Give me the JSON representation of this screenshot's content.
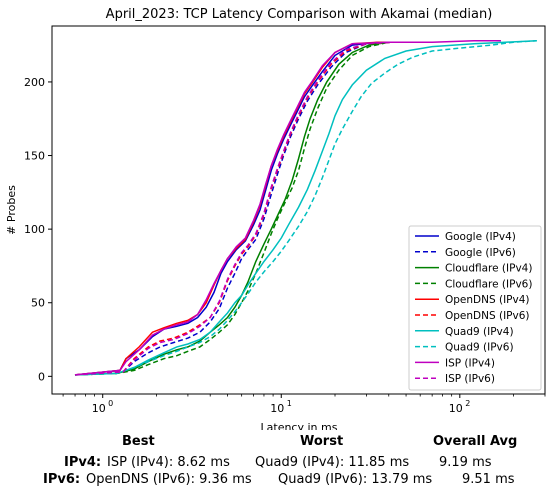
{
  "chart_data": {
    "type": "line",
    "title": "April_2023: TCP Latency Comparison with Akamai (median)",
    "xlabel": "Latency in ms",
    "ylabel": "# Probes",
    "xscale": "log",
    "xlim": [
      0.52,
      300
    ],
    "ylim": [
      -12,
      238
    ],
    "xticks": [
      {
        "value": 1,
        "base": "10",
        "exp": "0"
      },
      {
        "value": 10,
        "base": "10",
        "exp": "1"
      },
      {
        "value": 100,
        "base": "10",
        "exp": "2"
      }
    ],
    "yticks": [
      0,
      50,
      100,
      150,
      200
    ],
    "grid": false,
    "legend_position": "lower-right",
    "series": [
      {
        "name": "Google (IPv4)",
        "color": "#0000cc",
        "dash": "solid",
        "points": [
          [
            0.7,
            1
          ],
          [
            1.25,
            4
          ],
          [
            1.35,
            12
          ],
          [
            1.6,
            18
          ],
          [
            1.9,
            27
          ],
          [
            2.2,
            32
          ],
          [
            2.6,
            34
          ],
          [
            3.0,
            36
          ],
          [
            3.4,
            40
          ],
          [
            3.8,
            47
          ],
          [
            4.2,
            57
          ],
          [
            4.6,
            70
          ],
          [
            5.0,
            78
          ],
          [
            5.6,
            86
          ],
          [
            6.3,
            92
          ],
          [
            7.0,
            103
          ],
          [
            7.6,
            113
          ],
          [
            8.2,
            127
          ],
          [
            8.8,
            140
          ],
          [
            9.5,
            151
          ],
          [
            10.3,
            161
          ],
          [
            11.2,
            170
          ],
          [
            12.3,
            180
          ],
          [
            13.5,
            190
          ],
          [
            15,
            198
          ],
          [
            17,
            207
          ],
          [
            20,
            218
          ],
          [
            25,
            225
          ],
          [
            35,
            227
          ],
          [
            48,
            227
          ]
        ]
      },
      {
        "name": "Google (IPv6)",
        "color": "#0000cc",
        "dash": "dashed",
        "points": [
          [
            0.7,
            1
          ],
          [
            1.3,
            3
          ],
          [
            1.5,
            10
          ],
          [
            1.8,
            16
          ],
          [
            2.1,
            20
          ],
          [
            2.5,
            23
          ],
          [
            3.0,
            26
          ],
          [
            3.5,
            30
          ],
          [
            4.0,
            37
          ],
          [
            4.5,
            46
          ],
          [
            5.0,
            60
          ],
          [
            5.5,
            70
          ],
          [
            6.0,
            80
          ],
          [
            6.5,
            86
          ],
          [
            7.2,
            93
          ],
          [
            8.0,
            107
          ],
          [
            8.7,
            122
          ],
          [
            9.5,
            137
          ],
          [
            10.3,
            150
          ],
          [
            11.3,
            163
          ],
          [
            12.5,
            175
          ],
          [
            14,
            187
          ],
          [
            16,
            198
          ],
          [
            19,
            210
          ],
          [
            23,
            220
          ],
          [
            30,
            226
          ],
          [
            42,
            227
          ]
        ]
      },
      {
        "name": "Cloudflare (IPv4)",
        "color": "#008000",
        "dash": "solid",
        "points": [
          [
            0.7,
            1
          ],
          [
            1.2,
            2
          ],
          [
            1.5,
            5
          ],
          [
            1.8,
            10
          ],
          [
            2.2,
            15
          ],
          [
            2.6,
            18
          ],
          [
            3.0,
            20
          ],
          [
            3.5,
            24
          ],
          [
            4.0,
            30
          ],
          [
            4.5,
            35
          ],
          [
            5.0,
            40
          ],
          [
            5.5,
            47
          ],
          [
            6.0,
            55
          ],
          [
            6.5,
            64
          ],
          [
            7.2,
            78
          ],
          [
            8.0,
            90
          ],
          [
            8.8,
            100
          ],
          [
            9.6,
            110
          ],
          [
            10.5,
            120
          ],
          [
            11.5,
            133
          ],
          [
            12.5,
            148
          ],
          [
            13.5,
            163
          ],
          [
            14.5,
            175
          ],
          [
            16,
            188
          ],
          [
            18,
            200
          ],
          [
            21,
            212
          ],
          [
            25,
            220
          ],
          [
            31,
            225
          ],
          [
            40,
            227
          ]
        ]
      },
      {
        "name": "Cloudflare (IPv6)",
        "color": "#008000",
        "dash": "dashed",
        "points": [
          [
            0.7,
            1
          ],
          [
            1.2,
            2
          ],
          [
            1.5,
            4
          ],
          [
            1.8,
            8
          ],
          [
            2.2,
            12
          ],
          [
            2.6,
            14
          ],
          [
            3.0,
            17
          ],
          [
            3.5,
            20
          ],
          [
            4.0,
            25
          ],
          [
            4.5,
            30
          ],
          [
            5.0,
            35
          ],
          [
            5.5,
            42
          ],
          [
            6.0,
            50
          ],
          [
            6.5,
            58
          ],
          [
            7.2,
            70
          ],
          [
            8.0,
            84
          ],
          [
            8.8,
            97
          ],
          [
            9.6,
            108
          ],
          [
            10.5,
            118
          ],
          [
            11.5,
            128
          ],
          [
            12.5,
            140
          ],
          [
            13.5,
            155
          ],
          [
            14.5,
            168
          ],
          [
            16,
            182
          ],
          [
            18,
            196
          ],
          [
            21,
            208
          ],
          [
            25,
            218
          ],
          [
            31,
            224
          ],
          [
            40,
            227
          ]
        ]
      },
      {
        "name": "OpenDNS (IPv4)",
        "color": "#ff0000",
        "dash": "solid",
        "points": [
          [
            0.7,
            1
          ],
          [
            1.25,
            4
          ],
          [
            1.35,
            12
          ],
          [
            1.6,
            20
          ],
          [
            1.9,
            30
          ],
          [
            2.2,
            33
          ],
          [
            2.6,
            36
          ],
          [
            3.0,
            38
          ],
          [
            3.4,
            42
          ],
          [
            3.8,
            50
          ],
          [
            4.2,
            62
          ],
          [
            4.6,
            72
          ],
          [
            5.0,
            80
          ],
          [
            5.6,
            87
          ],
          [
            6.3,
            93
          ],
          [
            7.0,
            105
          ],
          [
            7.6,
            116
          ],
          [
            8.2,
            130
          ],
          [
            8.8,
            143
          ],
          [
            9.5,
            153
          ],
          [
            10.3,
            163
          ],
          [
            11.2,
            172
          ],
          [
            12.3,
            182
          ],
          [
            13.5,
            192
          ],
          [
            15,
            200
          ],
          [
            17,
            210
          ],
          [
            20,
            220
          ],
          [
            25,
            226
          ],
          [
            35,
            227
          ],
          [
            48,
            227
          ]
        ]
      },
      {
        "name": "OpenDNS (IPv6)",
        "color": "#ff0000",
        "dash": "dashed",
        "points": [
          [
            0.7,
            1
          ],
          [
            1.3,
            3
          ],
          [
            1.5,
            12
          ],
          [
            1.8,
            20
          ],
          [
            2.1,
            24
          ],
          [
            2.5,
            26
          ],
          [
            3.0,
            30
          ],
          [
            3.5,
            35
          ],
          [
            4.0,
            40
          ],
          [
            4.5,
            50
          ],
          [
            5.0,
            65
          ],
          [
            5.5,
            75
          ],
          [
            6.0,
            83
          ],
          [
            6.5,
            88
          ],
          [
            7.2,
            96
          ],
          [
            8.0,
            110
          ],
          [
            8.7,
            126
          ],
          [
            9.5,
            140
          ],
          [
            10.3,
            152
          ],
          [
            11.3,
            165
          ],
          [
            12.5,
            177
          ],
          [
            14,
            189
          ],
          [
            16,
            200
          ],
          [
            19,
            212
          ],
          [
            23,
            221
          ],
          [
            30,
            226
          ],
          [
            42,
            227
          ]
        ]
      },
      {
        "name": "Quad9 (IPv4)",
        "color": "#00bfbf",
        "dash": "solid",
        "points": [
          [
            0.7,
            1
          ],
          [
            1.2,
            2
          ],
          [
            1.5,
            6
          ],
          [
            1.8,
            11
          ],
          [
            2.2,
            16
          ],
          [
            2.6,
            20
          ],
          [
            3.0,
            22
          ],
          [
            3.5,
            25
          ],
          [
            4.0,
            30
          ],
          [
            4.5,
            37
          ],
          [
            5.0,
            43
          ],
          [
            5.5,
            50
          ],
          [
            6.0,
            55
          ],
          [
            6.5,
            62
          ],
          [
            7.2,
            70
          ],
          [
            8.0,
            78
          ],
          [
            9.0,
            86
          ],
          [
            10.0,
            94
          ],
          [
            11.0,
            103
          ],
          [
            12.5,
            115
          ],
          [
            14,
            127
          ],
          [
            15.5,
            140
          ],
          [
            17,
            153
          ],
          [
            18.5,
            165
          ],
          [
            20,
            177
          ],
          [
            22,
            188
          ],
          [
            25,
            198
          ],
          [
            30,
            208
          ],
          [
            38,
            216
          ],
          [
            50,
            221
          ],
          [
            70,
            224
          ],
          [
            120,
            226
          ],
          [
            180,
            227
          ],
          [
            270,
            228
          ]
        ]
      },
      {
        "name": "Quad9 (IPv6)",
        "color": "#00bfbf",
        "dash": "dashed",
        "points": [
          [
            0.7,
            1
          ],
          [
            1.2,
            2
          ],
          [
            1.5,
            6
          ],
          [
            1.8,
            10
          ],
          [
            2.2,
            14
          ],
          [
            2.6,
            17
          ],
          [
            3.0,
            20
          ],
          [
            3.5,
            23
          ],
          [
            4.0,
            27
          ],
          [
            4.5,
            32
          ],
          [
            5.0,
            38
          ],
          [
            5.5,
            44
          ],
          [
            6.0,
            50
          ],
          [
            6.5,
            56
          ],
          [
            7.2,
            64
          ],
          [
            8.0,
            71
          ],
          [
            9.0,
            78
          ],
          [
            10.0,
            85
          ],
          [
            11.0,
            92
          ],
          [
            12.5,
            102
          ],
          [
            14,
            112
          ],
          [
            15.5,
            123
          ],
          [
            17,
            135
          ],
          [
            18.5,
            147
          ],
          [
            20,
            158
          ],
          [
            22,
            168
          ],
          [
            25,
            180
          ],
          [
            28,
            190
          ],
          [
            32,
            199
          ],
          [
            38,
            206
          ],
          [
            45,
            212
          ],
          [
            55,
            217
          ],
          [
            70,
            221
          ],
          [
            100,
            223
          ],
          [
            150,
            225
          ],
          [
            200,
            227
          ],
          [
            270,
            228
          ]
        ]
      },
      {
        "name": "ISP (IPv4)",
        "color": "#bf00bf",
        "dash": "solid",
        "points": [
          [
            0.7,
            1
          ],
          [
            1.25,
            4
          ],
          [
            1.35,
            10
          ],
          [
            1.6,
            18
          ],
          [
            1.9,
            28
          ],
          [
            2.2,
            32
          ],
          [
            2.6,
            35
          ],
          [
            3.0,
            37
          ],
          [
            3.4,
            42
          ],
          [
            3.8,
            52
          ],
          [
            4.2,
            63
          ],
          [
            4.6,
            72
          ],
          [
            5.0,
            80
          ],
          [
            5.6,
            88
          ],
          [
            6.3,
            94
          ],
          [
            7.0,
            106
          ],
          [
            7.6,
            117
          ],
          [
            8.2,
            131
          ],
          [
            8.8,
            143
          ],
          [
            9.5,
            154
          ],
          [
            10.3,
            164
          ],
          [
            11.2,
            173
          ],
          [
            12.3,
            183
          ],
          [
            13.5,
            193
          ],
          [
            15,
            201
          ],
          [
            17,
            211
          ],
          [
            20,
            220
          ],
          [
            25,
            226
          ],
          [
            40,
            227
          ],
          [
            70,
            227
          ],
          [
            120,
            228
          ],
          [
            170,
            228
          ]
        ]
      },
      {
        "name": "ISP (IPv6)",
        "color": "#bf00bf",
        "dash": "dashed",
        "points": [
          [
            0.7,
            1
          ],
          [
            1.3,
            3
          ],
          [
            1.5,
            11
          ],
          [
            1.8,
            19
          ],
          [
            2.1,
            23
          ],
          [
            2.5,
            25
          ],
          [
            3.0,
            29
          ],
          [
            3.5,
            34
          ],
          [
            4.0,
            40
          ],
          [
            4.5,
            51
          ],
          [
            5.0,
            66
          ],
          [
            5.5,
            76
          ],
          [
            6.0,
            84
          ],
          [
            6.5,
            89
          ],
          [
            7.2,
            97
          ],
          [
            8.0,
            111
          ],
          [
            8.7,
            127
          ],
          [
            9.5,
            141
          ],
          [
            10.3,
            153
          ],
          [
            11.3,
            166
          ],
          [
            12.5,
            178
          ],
          [
            14,
            190
          ],
          [
            16,
            201
          ],
          [
            19,
            213
          ],
          [
            23,
            222
          ],
          [
            30,
            226
          ],
          [
            42,
            227
          ]
        ]
      }
    ]
  },
  "summary": {
    "headers": {
      "best": "Best",
      "worst": "Worst",
      "avg": "Overall Avg"
    },
    "rows": [
      {
        "label": "IPv4",
        "colon": ":",
        "best": "ISP (IPv4): 8.62 ms",
        "worst": "Quad9 (IPv4): 11.85 ms",
        "avg": "9.19 ms"
      },
      {
        "label": "IPv6",
        "colon": ":",
        "best": "OpenDNS (IPv6): 9.36 ms",
        "worst": "Quad9 (IPv6): 13.79 ms",
        "avg": "9.51 ms"
      }
    ]
  }
}
